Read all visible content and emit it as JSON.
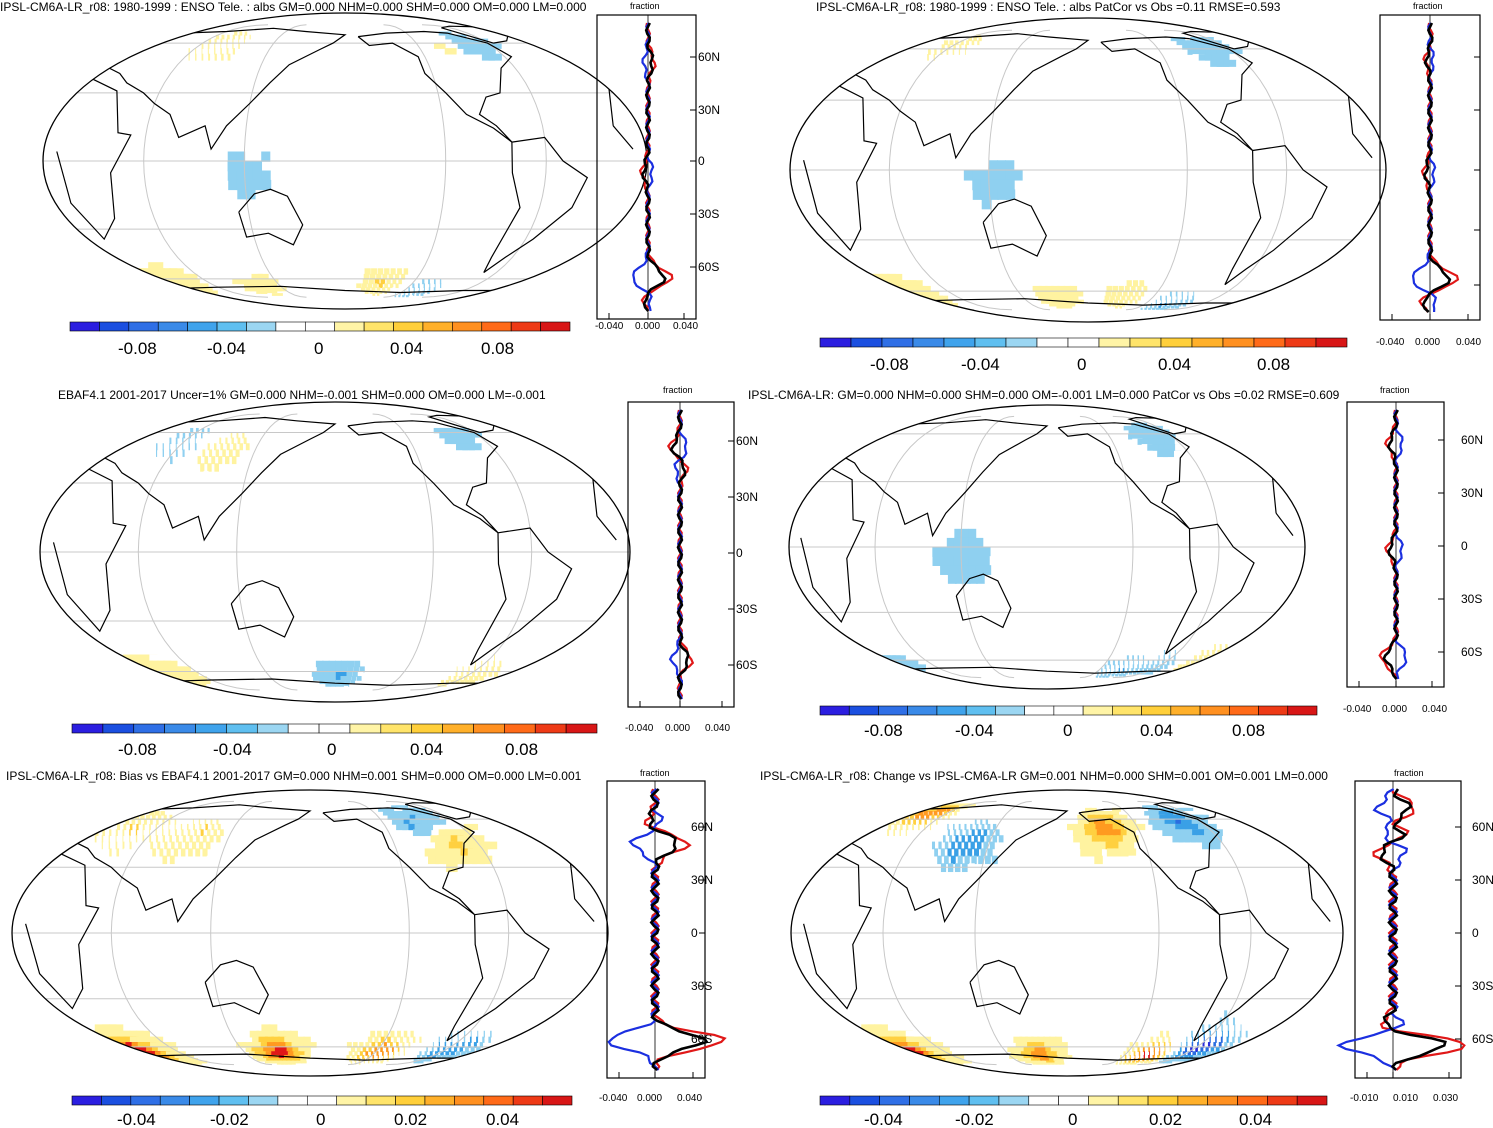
{
  "chart_data": [
    {
      "type": "heatmap",
      "title": "IPSL-CM6A-LR_r08: 1980-1999 : ENSO Tele. : albs GM=0.000 NHM=0.000 SHM=0.000 OM=0.000 LM=0.000",
      "profile_label": "fraction",
      "lat_ticks": [
        "60N",
        "30N",
        "0",
        "30S",
        "60S"
      ],
      "x_ticks": [
        "-0.040",
        "0.000",
        "0.040"
      ],
      "colorbar": {
        "labels": [
          "-0.08",
          "-0.04",
          "0",
          "0.04",
          "0.08"
        ],
        "range": [
          -0.1,
          0.1
        ]
      },
      "hotspots": [
        {
          "lon": 75,
          "lat": 62,
          "value": 0.03
        },
        {
          "lon": -80,
          "lat": 62,
          "value": -0.03
        },
        {
          "lon": -100,
          "lat": 58,
          "value": 0.02
        },
        {
          "lon": 120,
          "lat": -3,
          "value": -0.02
        },
        {
          "lon": 30,
          "lat": -60,
          "value": 0.03
        },
        {
          "lon": -150,
          "lat": -63,
          "value": 0.04
        },
        {
          "lon": -110,
          "lat": -70,
          "value": -0.03
        },
        {
          "lon": 100,
          "lat": -65,
          "value": 0.02
        }
      ]
    },
    {
      "type": "heatmap",
      "title": "IPSL-CM6A-LR_r08: 1980-1999 : ENSO Tele. : albs PatCor vs Obs =0.11 RMSE=0.593",
      "profile_label": "fraction",
      "lat_ticks": [
        "",
        "",
        "",
        "",
        ""
      ],
      "x_ticks": [
        "-0.040",
        "0.000",
        "0.040"
      ],
      "colorbar": {
        "labels": [
          "-0.08",
          "-0.04",
          "0",
          "0.04",
          "0.08"
        ],
        "range": [
          -0.1,
          0.1
        ]
      },
      "hotspots": [
        {
          "lon": -80,
          "lat": 62,
          "value": -0.03
        },
        {
          "lon": 60,
          "lat": 65,
          "value": 0.02
        },
        {
          "lon": 120,
          "lat": -3,
          "value": -0.02
        },
        {
          "lon": 20,
          "lat": -60,
          "value": 0.04
        },
        {
          "lon": -150,
          "lat": -63,
          "value": 0.03
        },
        {
          "lon": -100,
          "lat": -72,
          "value": -0.04
        },
        {
          "lon": 150,
          "lat": -65,
          "value": 0.03
        }
      ]
    },
    {
      "type": "heatmap",
      "title": "EBAF4.1 2001-2017 Uncer=1% GM=0.000 NHM=-0.001 SHM=0.000 OM=0.000 LM=-0.001",
      "profile_label": "fraction",
      "lat_ticks": [
        "60N",
        "30N",
        "0",
        "30S",
        "60S"
      ],
      "x_ticks": [
        "-0.040",
        "0.000",
        "0.040"
      ],
      "colorbar": {
        "labels": [
          "-0.08",
          "-0.04",
          "0",
          "0.04",
          "0.08"
        ],
        "range": [
          -0.1,
          0.1
        ]
      },
      "hotspots": [
        {
          "lon": 60,
          "lat": 55,
          "value": -0.03
        },
        {
          "lon": 90,
          "lat": 50,
          "value": 0.03
        },
        {
          "lon": -85,
          "lat": 58,
          "value": -0.03
        },
        {
          "lon": -100,
          "lat": 55,
          "value": 0.02
        },
        {
          "lon": 30,
          "lat": -60,
          "value": 0.04
        },
        {
          "lon": 180,
          "lat": -62,
          "value": -0.04
        },
        {
          "lon": -60,
          "lat": -60,
          "value": 0.03
        }
      ]
    },
    {
      "type": "heatmap",
      "title": "IPSL-CM6A-LR: GM=0.000 NHM=0.000 SHM=0.000 OM=-0.001 LM=0.000 PatCor vs Obs =0.02 RMSE=0.609",
      "profile_label": "fraction",
      "lat_ticks": [
        "60N",
        "30N",
        "0",
        "30S",
        "60S"
      ],
      "x_ticks": [
        "-0.040",
        "0.000",
        "0.040"
      ],
      "colorbar": {
        "labels": [
          "-0.08",
          "-0.04",
          "0",
          "0.04",
          "0.08"
        ],
        "range": [
          -0.1,
          0.1
        ]
      },
      "hotspots": [
        {
          "lon": -80,
          "lat": 60,
          "value": -0.03
        },
        {
          "lon": 120,
          "lat": -3,
          "value": -0.03
        },
        {
          "lon": -100,
          "lat": -68,
          "value": -0.04
        },
        {
          "lon": -30,
          "lat": -60,
          "value": 0.04
        },
        {
          "lon": -60,
          "lat": -62,
          "value": -0.03
        },
        {
          "lon": 30,
          "lat": -60,
          "value": -0.02
        }
      ]
    },
    {
      "type": "heatmap",
      "title": "IPSL-CM6A-LR_r08: Bias vs EBAF4.1 2001-2017 GM=0.000 NHM=0.001 SHM=0.000 OM=0.000 LM=0.001",
      "profile_label": "fraction",
      "lat_ticks": [
        "60N",
        "30N",
        "0",
        "30S",
        "60S"
      ],
      "x_ticks": [
        "-0.040",
        "0.000",
        "0.040"
      ],
      "colorbar": {
        "labels": [
          "-0.04",
          "-0.02",
          "0",
          "0.02",
          "0.04"
        ],
        "range": [
          -0.05,
          0.05
        ]
      },
      "hotspots": [
        {
          "lon": 40,
          "lat": 55,
          "value": 0.02
        },
        {
          "lon": 90,
          "lat": 50,
          "value": 0.02
        },
        {
          "lon": -90,
          "lat": 58,
          "value": -0.03
        },
        {
          "lon": -80,
          "lat": 48,
          "value": 0.03
        },
        {
          "lon": 30,
          "lat": -62,
          "value": 0.05
        },
        {
          "lon": 150,
          "lat": -63,
          "value": 0.05
        },
        {
          "lon": -120,
          "lat": -63,
          "value": 0.04
        },
        {
          "lon": -60,
          "lat": -60,
          "value": -0.03
        }
      ]
    },
    {
      "type": "heatmap",
      "title": "IPSL-CM6A-LR_r08: Change vs IPSL-CM6A-LR GM=0.001 NHM=0.000 SHM=0.001 OM=0.001 LM=0.000",
      "profile_label": "fraction",
      "lat_ticks": [
        "60N",
        "30N",
        "0",
        "30S",
        "60S"
      ],
      "x_ticks": [
        "-0.010",
        "0.010",
        "0.030"
      ],
      "colorbar": {
        "labels": [
          "-0.04",
          "-0.02",
          "0",
          "0.02",
          "0.04"
        ],
        "range": [
          -0.05,
          0.05
        ]
      },
      "hotspots": [
        {
          "lon": 40,
          "lat": 68,
          "value": 0.04
        },
        {
          "lon": -150,
          "lat": 55,
          "value": 0.04
        },
        {
          "lon": 100,
          "lat": 45,
          "value": -0.03
        },
        {
          "lon": -80,
          "lat": 60,
          "value": -0.03
        },
        {
          "lon": 30,
          "lat": -62,
          "value": 0.05
        },
        {
          "lon": 150,
          "lat": -66,
          "value": 0.04
        },
        {
          "lon": -100,
          "lat": -66,
          "value": 0.05
        },
        {
          "lon": -60,
          "lat": -58,
          "value": -0.05
        }
      ]
    }
  ]
}
